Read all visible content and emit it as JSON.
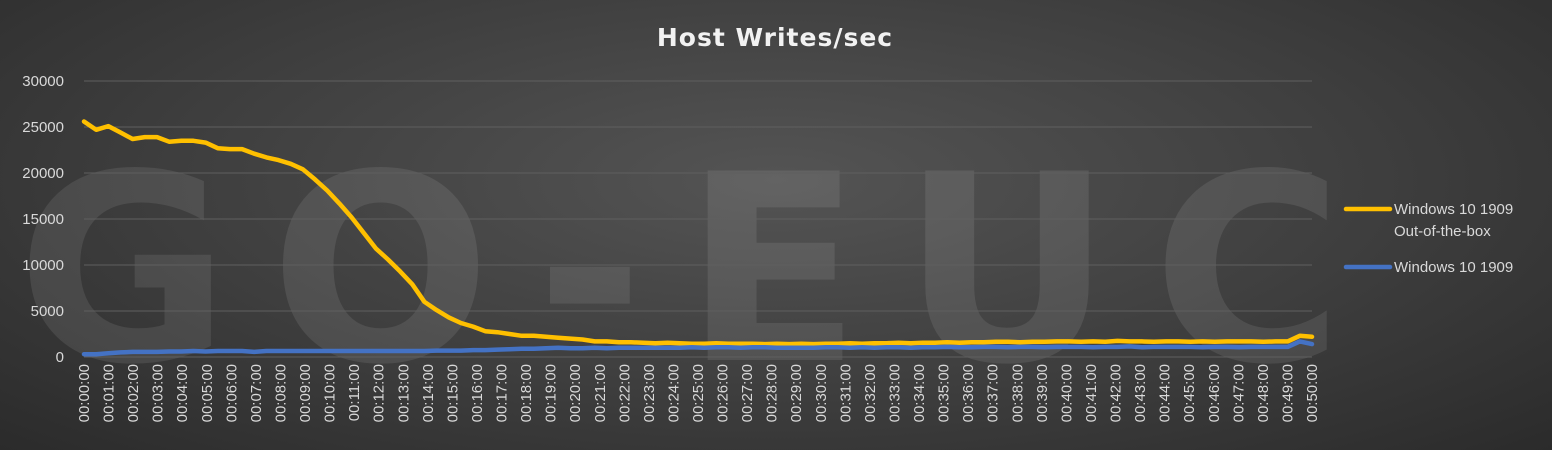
{
  "watermark": "GO-EUC",
  "chart_data": {
    "type": "line",
    "title": "Host Writes/sec",
    "xlabel": "",
    "ylabel": "",
    "ylim": [
      0,
      30000
    ],
    "yticks": [
      0,
      5000,
      10000,
      15000,
      20000,
      25000,
      30000
    ],
    "grid": true,
    "legend_position": "right",
    "x_tick_labels": [
      "00:00:00",
      "00:01:00",
      "00:02:00",
      "00:03:00",
      "00:04:00",
      "00:05:00",
      "00:06:00",
      "00:07:00",
      "00:08:00",
      "00:09:00",
      "00:10:00",
      "00:11:00",
      "00:12:00",
      "00:13:00",
      "00:14:00",
      "00:15:00",
      "00:16:00",
      "00:17:00",
      "00:18:00",
      "00:19:00",
      "00:20:00",
      "00:21:00",
      "00:22:00",
      "00:23:00",
      "00:24:00",
      "00:25:00",
      "00:26:00",
      "00:27:00",
      "00:28:00",
      "00:29:00",
      "00:30:00",
      "00:31:00",
      "00:32:00",
      "00:33:00",
      "00:34:00",
      "00:35:00",
      "00:36:00",
      "00:37:00",
      "00:38:00",
      "00:39:00",
      "00:40:00",
      "00:41:00",
      "00:42:00",
      "00:43:00",
      "00:44:00",
      "00:45:00",
      "00:46:00",
      "00:47:00",
      "00:48:00",
      "00:49:00",
      "00:50:00"
    ],
    "series": [
      {
        "name": "Windows 10 1909 Out-of-the-box",
        "legend_lines": [
          "Windows 10 1909",
          "Out-of-the-box"
        ],
        "color": "#ffc000",
        "values": [
          25600,
          24700,
          25100,
          24400,
          23700,
          23900,
          23900,
          23400,
          23500,
          23500,
          23300,
          22700,
          22600,
          22600,
          22100,
          21700,
          21400,
          21000,
          20400,
          19300,
          18100,
          16700,
          15200,
          13500,
          11800,
          10600,
          9300,
          7900,
          6000,
          5100,
          4300,
          3700,
          3300,
          2800,
          2700,
          2500,
          2300,
          2300,
          2200,
          2100,
          2000,
          1900,
          1700,
          1700,
          1600,
          1600,
          1550,
          1500,
          1550,
          1500,
          1450,
          1450,
          1500,
          1450,
          1450,
          1450,
          1400,
          1450,
          1400,
          1450,
          1400,
          1450,
          1450,
          1500,
          1450,
          1500,
          1500,
          1550,
          1500,
          1550,
          1550,
          1600,
          1550,
          1600,
          1600,
          1650,
          1650,
          1600,
          1650,
          1650,
          1700,
          1700,
          1650,
          1700,
          1650,
          1750,
          1700,
          1700,
          1650,
          1700,
          1700,
          1650,
          1700,
          1650,
          1700,
          1700,
          1700,
          1650,
          1700,
          1700,
          2300,
          2200
        ]
      },
      {
        "name": "Windows 10 1909",
        "legend_lines": [
          "Windows 10 1909"
        ],
        "color": "#4472c4",
        "values": [
          300,
          300,
          400,
          500,
          550,
          550,
          550,
          600,
          600,
          650,
          600,
          650,
          650,
          650,
          550,
          650,
          650,
          650,
          650,
          650,
          650,
          650,
          650,
          650,
          650,
          650,
          650,
          650,
          650,
          700,
          700,
          700,
          750,
          750,
          800,
          850,
          900,
          900,
          950,
          1000,
          950,
          950,
          1000,
          950,
          1000,
          1000,
          1000,
          1000,
          1000,
          1000,
          1050,
          1000,
          1050,
          1050,
          1000,
          1050,
          1050,
          1000,
          1000,
          1000,
          1000,
          1050,
          1050,
          1000,
          1050,
          1000,
          1050,
          1050,
          1000,
          1050,
          1050,
          1100,
          1050,
          1050,
          1100,
          1100,
          1050,
          1100,
          1100,
          1050,
          1100,
          1100,
          1100,
          1050,
          1100,
          1100,
          1150,
          1050,
          1100,
          1100,
          1100,
          1100,
          1050,
          1100,
          1100,
          1050,
          1100,
          1100,
          1100,
          1100,
          1700,
          1400
        ]
      }
    ]
  }
}
